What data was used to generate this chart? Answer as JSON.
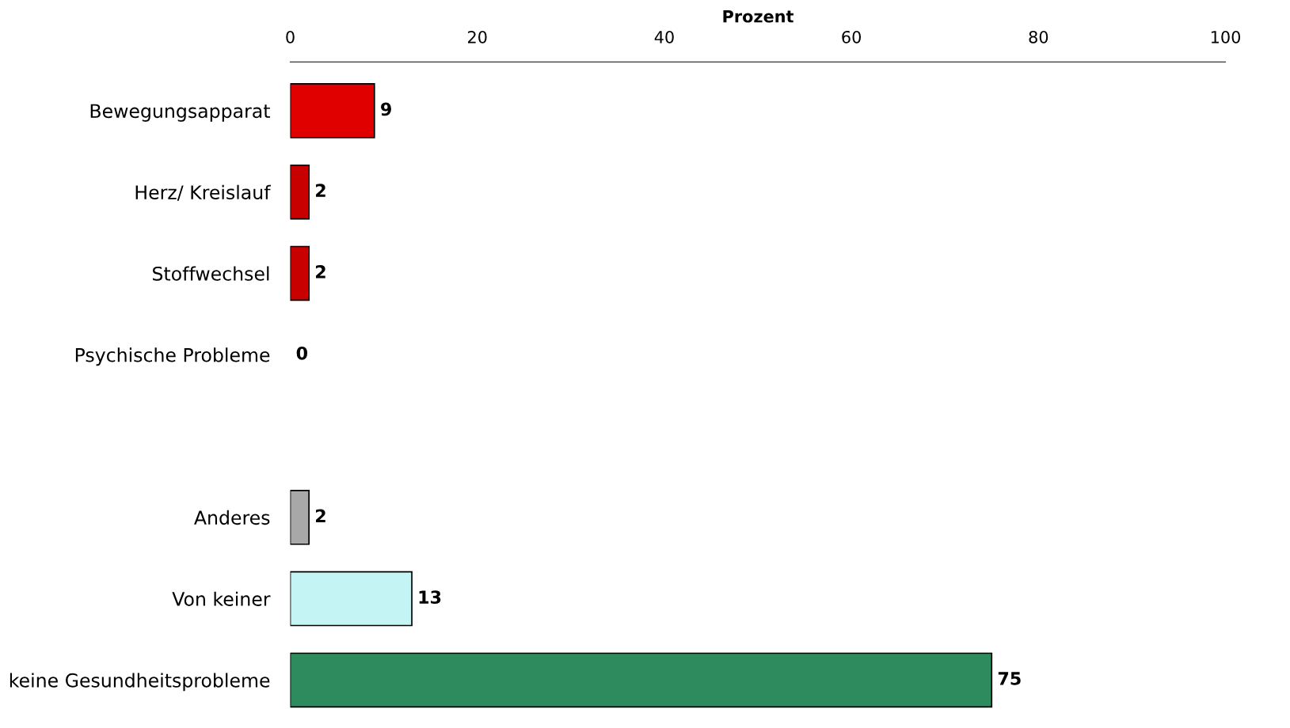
{
  "chart_data": {
    "type": "bar",
    "orientation": "horizontal",
    "xlabel": "Prozent",
    "categories": [
      "Bewegungsapparat",
      "Herz/ Kreislauf",
      "Stoffwechsel",
      "Psychische Probleme",
      null,
      "Anderes",
      "Von keiner",
      "keine Gesundheitsprobleme"
    ],
    "values": [
      9,
      2,
      2,
      0,
      null,
      2,
      13,
      75
    ],
    "colors": [
      "#e00000",
      "#c80000",
      "#c80000",
      "#c80000",
      "#ffffff",
      "#a8a8a8",
      "#c4f4f4",
      "#2e8b5e"
    ],
    "xlim": [
      0,
      100
    ],
    "xticks": [
      0,
      20,
      40,
      60,
      80,
      100
    ],
    "grid": false,
    "data_labels": true
  }
}
